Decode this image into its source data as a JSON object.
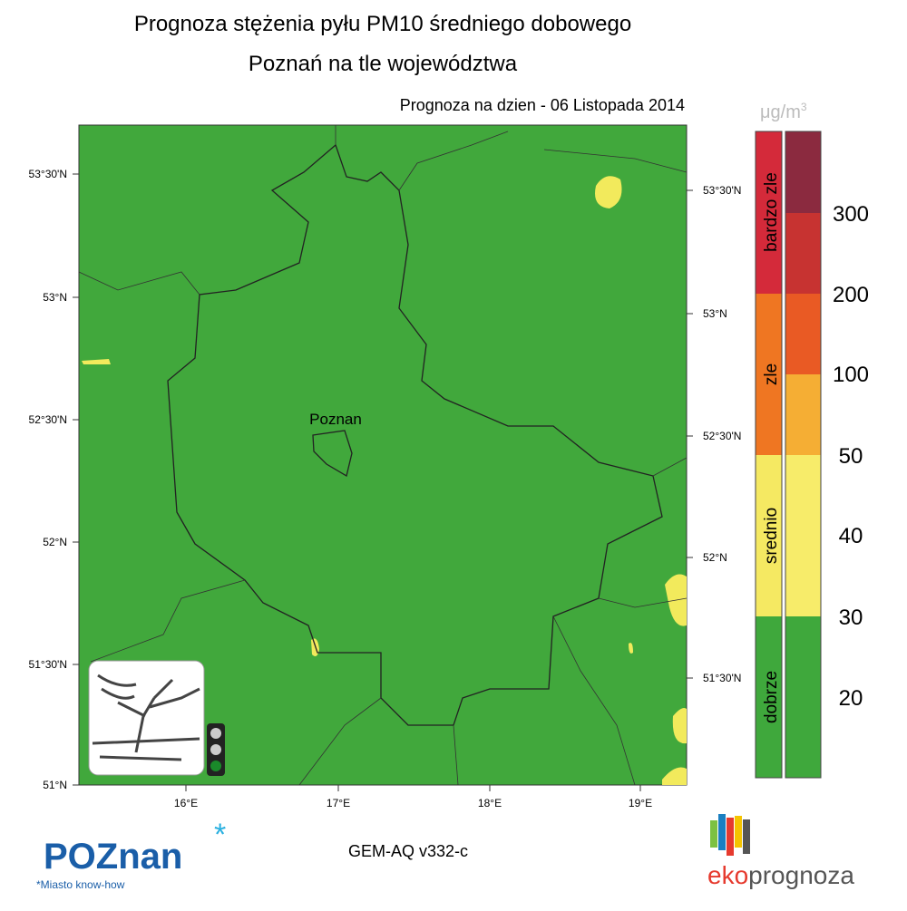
{
  "header": {
    "title": "Prognoza stężenia pyłu PM10 średniego dobowego",
    "subtitle": "Poznań na tle województwa",
    "date": "Prognoza na dzien -  06 Listopada 2014"
  },
  "map": {
    "city_label": "Poznan",
    "lat_labels_left": [
      "53°30'N",
      "53°N",
      "52°30'N",
      "52°N",
      "51°30'N",
      "51°N"
    ],
    "lat_labels_right": [
      "53°30'N",
      "53°N",
      "52°30'N",
      "52°N",
      "51°30'N"
    ],
    "lon_labels": [
      "16°E",
      "17°E",
      "18°E",
      "19°E"
    ]
  },
  "legend": {
    "unit": {
      "base": "μg/m",
      "power": "3"
    },
    "categories": [
      "bardzo zle",
      "zle",
      "srednio",
      "dobrze"
    ],
    "thresholds": [
      "300",
      "200",
      "100",
      "50",
      "40",
      "30",
      "20"
    ]
  },
  "footer": {
    "model": "GEM-AQ v332-c",
    "city_logo": "POZnan",
    "city_motto": "*Miasto know-how",
    "brand_prefix": "eko",
    "brand_suffix": "prognoza"
  }
}
